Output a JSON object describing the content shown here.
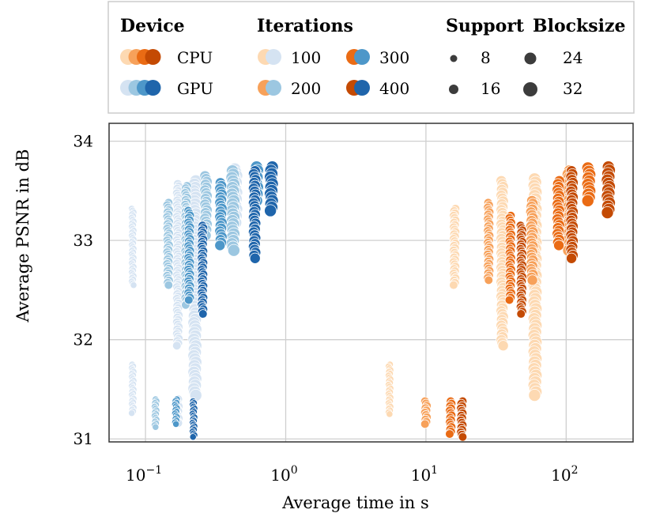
{
  "chart_data": {
    "type": "scatter",
    "title": "",
    "xlabel": "Average time in s",
    "ylabel": "Average PSNR in dB",
    "xscale": "log",
    "xlim": [
      0.055,
      300
    ],
    "ylim": [
      30.97,
      34.18
    ],
    "grid": true,
    "x_ticks": [
      {
        "value": 0.1,
        "base": "10",
        "exp": "−1"
      },
      {
        "value": 1,
        "base": "10",
        "exp": "0"
      },
      {
        "value": 10,
        "base": "10",
        "exp": "1"
      },
      {
        "value": 100,
        "base": "10",
        "exp": "2"
      }
    ],
    "y_ticks": [
      31,
      32,
      33,
      34
    ],
    "legend": {
      "placement": "top, above plot",
      "device": {
        "title": "Device",
        "items": [
          {
            "label": "CPU",
            "colors": [
              "#fdd9b2",
              "#f7a15a",
              "#ea6b14",
              "#c44a03"
            ]
          },
          {
            "label": "GPU",
            "colors": [
              "#d5e3f2",
              "#9cc7e1",
              "#4d97c9",
              "#1f65ab"
            ]
          }
        ]
      },
      "iterations": {
        "title": "Iterations",
        "items": [
          {
            "label": "100",
            "cpu_color": "#fdd9b2",
            "gpu_color": "#d5e3f2"
          },
          {
            "label": "200",
            "cpu_color": "#f7a15a",
            "gpu_color": "#9cc7e1"
          },
          {
            "label": "300",
            "cpu_color": "#ea6b14",
            "gpu_color": "#4d97c9"
          },
          {
            "label": "400",
            "cpu_color": "#c44a03",
            "gpu_color": "#1f65ab"
          }
        ]
      },
      "support": {
        "title": "Support",
        "items": [
          {
            "label": "8",
            "size": 8
          },
          {
            "label": "16",
            "size": 16
          }
        ]
      },
      "blocksize": {
        "title": "Blocksize",
        "items": [
          {
            "label": "24",
            "size": 24
          },
          {
            "label": "32",
            "size": 32
          }
        ]
      },
      "marker_color": "#3c3c3c"
    },
    "series": [
      {
        "name": "GPU-100",
        "device": "GPU",
        "iterations": 100,
        "color": "#d5e3f2",
        "clusters": [
          {
            "x": 0.081,
            "y_low": 32.55,
            "y_high": 33.32,
            "size": 8
          },
          {
            "x": 0.081,
            "y_low": 31.26,
            "y_high": 31.75,
            "size": 8
          },
          {
            "x": 0.17,
            "y_low": 31.94,
            "y_high": 33.57,
            "size": 16
          },
          {
            "x": 0.17,
            "y_low": 31.16,
            "y_high": 31.4,
            "size": 16
          },
          {
            "x": 0.225,
            "y_low": 31.44,
            "y_high": 33.6,
            "size": 32
          },
          {
            "x": 0.44,
            "y_low": 33.18,
            "y_high": 33.72,
            "size": 32
          }
        ]
      },
      {
        "name": "GPU-200",
        "device": "GPU",
        "iterations": 200,
        "color": "#9cc7e1",
        "clusters": [
          {
            "x": 0.118,
            "y_low": 31.12,
            "y_high": 31.4,
            "size": 8
          },
          {
            "x": 0.145,
            "y_low": 32.55,
            "y_high": 33.38,
            "size": 16
          },
          {
            "x": 0.195,
            "y_low": 32.35,
            "y_high": 33.55,
            "size": 16
          },
          {
            "x": 0.27,
            "y_low": 33.05,
            "y_high": 33.65,
            "size": 24
          },
          {
            "x": 0.42,
            "y_low": 32.9,
            "y_high": 33.7,
            "size": 32
          }
        ]
      },
      {
        "name": "GPU-300",
        "device": "GPU",
        "iterations": 300,
        "color": "#4d97c9",
        "clusters": [
          {
            "x": 0.165,
            "y_low": 31.15,
            "y_high": 31.4,
            "size": 8
          },
          {
            "x": 0.205,
            "y_low": 32.4,
            "y_high": 33.3,
            "size": 16
          },
          {
            "x": 0.345,
            "y_low": 32.95,
            "y_high": 33.58,
            "size": 24
          },
          {
            "x": 0.62,
            "y_low": 33.4,
            "y_high": 33.74,
            "size": 32
          }
        ]
      },
      {
        "name": "GPU-400",
        "device": "GPU",
        "iterations": 400,
        "color": "#1f65ab",
        "clusters": [
          {
            "x": 0.22,
            "y_low": 31.02,
            "y_high": 31.38,
            "size": 8
          },
          {
            "x": 0.255,
            "y_low": 32.26,
            "y_high": 33.15,
            "size": 16
          },
          {
            "x": 0.6,
            "y_low": 32.82,
            "y_high": 33.7,
            "size": 24
          },
          {
            "x": 0.79,
            "y_low": 33.3,
            "y_high": 33.74,
            "size": 32
          }
        ]
      },
      {
        "name": "CPU-100",
        "device": "CPU",
        "iterations": 100,
        "color": "#fdd9b2",
        "clusters": [
          {
            "x": 5.5,
            "y_low": 31.25,
            "y_high": 31.75,
            "size": 8
          },
          {
            "x": 16.0,
            "y_low": 32.55,
            "y_high": 33.32,
            "size": 16
          },
          {
            "x": 35.0,
            "y_low": 31.94,
            "y_high": 33.6,
            "size": 24
          },
          {
            "x": 60.0,
            "y_low": 31.44,
            "y_high": 33.62,
            "size": 32
          }
        ]
      },
      {
        "name": "CPU-200",
        "device": "CPU",
        "iterations": 200,
        "color": "#f7a15a",
        "clusters": [
          {
            "x": 10.0,
            "y_low": 31.15,
            "y_high": 31.38,
            "size": 16
          },
          {
            "x": 28.0,
            "y_low": 32.6,
            "y_high": 33.38,
            "size": 16
          },
          {
            "x": 57.0,
            "y_low": 32.6,
            "y_high": 33.4,
            "size": 24
          },
          {
            "x": 105.0,
            "y_low": 32.9,
            "y_high": 33.7,
            "size": 32
          }
        ]
      },
      {
        "name": "CPU-300",
        "device": "CPU",
        "iterations": 300,
        "color": "#ea6b14",
        "clusters": [
          {
            "x": 15.0,
            "y_low": 31.05,
            "y_high": 31.38,
            "size": 16
          },
          {
            "x": 40.0,
            "y_low": 32.4,
            "y_high": 33.25,
            "size": 16
          },
          {
            "x": 88.0,
            "y_low": 32.95,
            "y_high": 33.6,
            "size": 24
          },
          {
            "x": 145.0,
            "y_low": 33.4,
            "y_high": 33.73,
            "size": 32
          }
        ]
      },
      {
        "name": "CPU-400",
        "device": "CPU",
        "iterations": 400,
        "color": "#c44a03",
        "clusters": [
          {
            "x": 18.0,
            "y_low": 31.02,
            "y_high": 31.38,
            "size": 16
          },
          {
            "x": 48.0,
            "y_low": 32.26,
            "y_high": 33.15,
            "size": 16
          },
          {
            "x": 110.0,
            "y_low": 32.82,
            "y_high": 33.7,
            "size": 24
          },
          {
            "x": 200.0,
            "y_low": 33.28,
            "y_high": 33.74,
            "size": 32
          }
        ]
      }
    ]
  }
}
